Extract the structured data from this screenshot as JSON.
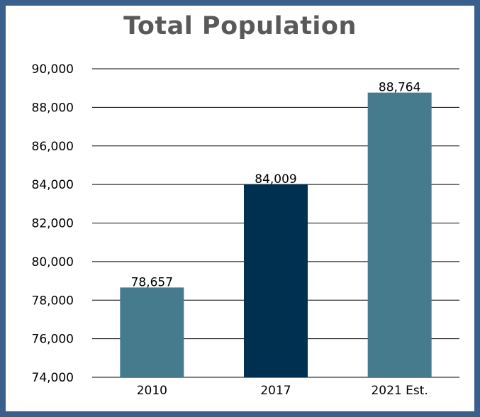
{
  "chart_data": {
    "type": "bar",
    "title": "Total Population",
    "categories": [
      "2010",
      "2017",
      "2021 Est."
    ],
    "values": [
      78657,
      84009,
      88764
    ],
    "data_labels": [
      "78,657",
      "84,009",
      "88,764"
    ],
    "ylim": [
      74000,
      90000
    ],
    "yticks": [
      "74,000",
      "76,000",
      "78,000",
      "80,000",
      "82,000",
      "84,000",
      "86,000",
      "88,000",
      "90,000"
    ],
    "bar_colors": [
      "#457b8d",
      "#003050",
      "#457b8d"
    ],
    "grid": true,
    "legend": "none"
  },
  "colors": {
    "frame": "#3b5f8d",
    "title": "#595959"
  }
}
